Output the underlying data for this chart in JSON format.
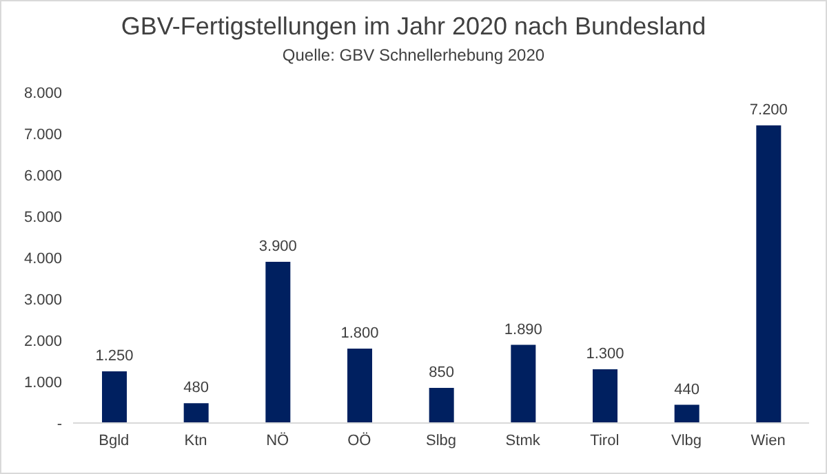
{
  "chart_data": {
    "type": "bar",
    "title": "GBV-Fertigstellungen im Jahr 2020 nach Bundesland",
    "subtitle": "Quelle: GBV Schnellerhebung 2020",
    "categories": [
      "Bgld",
      "Ktn",
      "NÖ",
      "OÖ",
      "Slbg",
      "Stmk",
      "Tirol",
      "Vlbg",
      "Wien"
    ],
    "values": [
      1250,
      480,
      3900,
      1800,
      850,
      1890,
      1300,
      440,
      7200
    ],
    "value_labels": [
      "1.250",
      "480",
      "3.900",
      "1.800",
      "850",
      "1.890",
      "1.300",
      "440",
      "7.200"
    ],
    "color": "#002060",
    "ylim": [
      0,
      8000
    ],
    "yticks": [
      {
        "value": 0,
        "label": "-"
      },
      {
        "value": 1000,
        "label": "1.000"
      },
      {
        "value": 2000,
        "label": "2.000"
      },
      {
        "value": 3000,
        "label": "3.000"
      },
      {
        "value": 4000,
        "label": "4.000"
      },
      {
        "value": 5000,
        "label": "5.000"
      },
      {
        "value": 6000,
        "label": "6.000"
      },
      {
        "value": 7000,
        "label": "7.000"
      },
      {
        "value": 8000,
        "label": "8.000"
      }
    ],
    "grid": false,
    "legend": false
  }
}
